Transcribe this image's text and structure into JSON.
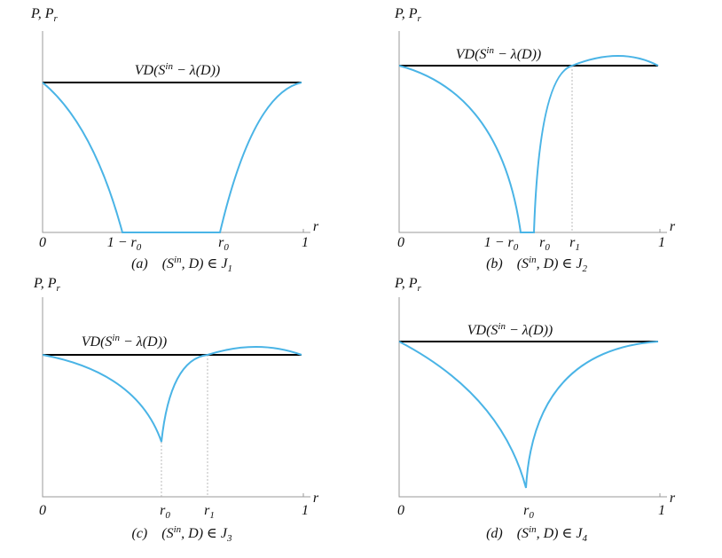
{
  "panels": [
    {
      "y_label": [
        {
          "t": "P, P"
        },
        {
          "t": "r",
          "s": "sub"
        }
      ],
      "x_label": "r",
      "x_start": "0",
      "x_end": "1",
      "curve_label": [
        {
          "t": "VD(S"
        },
        {
          "t": "in",
          "s": "sup"
        },
        {
          "t": " − λ(D))"
        }
      ],
      "x_marks": [
        [
          {
            "t": "1 − r"
          },
          {
            "t": "0",
            "s": "sub"
          }
        ],
        [
          {
            "t": "r"
          },
          {
            "t": "0",
            "s": "sub"
          }
        ]
      ],
      "caption": [
        {
          "t": "(a)    (S"
        },
        {
          "t": "in",
          "s": "sup"
        },
        {
          "t": ", D) ∈ J"
        },
        {
          "t": "1",
          "s": "sub"
        }
      ]
    },
    {
      "y_label": [
        {
          "t": "P, P"
        },
        {
          "t": "r",
          "s": "sub"
        }
      ],
      "x_label": "r",
      "x_start": "0",
      "x_end": "1",
      "curve_label": [
        {
          "t": "VD(S"
        },
        {
          "t": "in",
          "s": "sup"
        },
        {
          "t": " − λ(D))"
        }
      ],
      "x_marks": [
        [
          {
            "t": "1 − r"
          },
          {
            "t": "0",
            "s": "sub"
          }
        ],
        [
          {
            "t": "r"
          },
          {
            "t": "0",
            "s": "sub"
          }
        ],
        [
          {
            "t": "r"
          },
          {
            "t": "1",
            "s": "sub"
          }
        ]
      ],
      "caption": [
        {
          "t": "(b)    (S"
        },
        {
          "t": "in",
          "s": "sup"
        },
        {
          "t": ", D) ∈ J"
        },
        {
          "t": "2",
          "s": "sub"
        }
      ]
    },
    {
      "y_label": [
        {
          "t": "P, P"
        },
        {
          "t": "r",
          "s": "sub"
        }
      ],
      "x_label": "r",
      "x_start": "0",
      "x_end": "1",
      "curve_label": [
        {
          "t": "VD(S"
        },
        {
          "t": "in",
          "s": "sup"
        },
        {
          "t": " − λ(D))"
        }
      ],
      "x_marks": [
        [
          {
            "t": "r"
          },
          {
            "t": "0",
            "s": "sub"
          }
        ],
        [
          {
            "t": "r"
          },
          {
            "t": "1",
            "s": "sub"
          }
        ]
      ],
      "caption": [
        {
          "t": "(c)    (S"
        },
        {
          "t": "in",
          "s": "sup"
        },
        {
          "t": ", D) ∈ J"
        },
        {
          "t": "3",
          "s": "sub"
        }
      ]
    },
    {
      "y_label": [
        {
          "t": "P, P"
        },
        {
          "t": "r",
          "s": "sub"
        }
      ],
      "x_label": "r",
      "x_start": "0",
      "x_end": "1",
      "curve_label": [
        {
          "t": "VD(S"
        },
        {
          "t": "in",
          "s": "sup"
        },
        {
          "t": " − λ(D))"
        }
      ],
      "x_marks": [
        [
          {
            "t": "r"
          },
          {
            "t": "0",
            "s": "sub"
          }
        ]
      ],
      "caption": [
        {
          "t": "(d)    (S"
        },
        {
          "t": "in",
          "s": "sup"
        },
        {
          "t": ", D) ∈ J"
        },
        {
          "t": "4",
          "s": "sub"
        }
      ]
    }
  ]
}
